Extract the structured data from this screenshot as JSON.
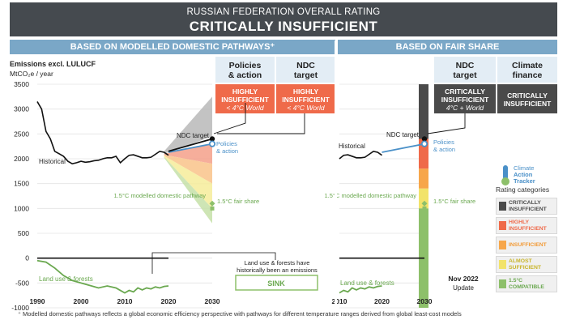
{
  "header": {
    "subtitle": "RUSSIAN FEDERATION OVERALL RATING",
    "title": "CRITICALLY INSUFFICIENT"
  },
  "bands": {
    "left": "BASED ON MODELLED DOMESTIC PATHWAYS⁺",
    "right": "BASED ON FAIR SHARE"
  },
  "columns": {
    "policies": {
      "title_l1": "Policies",
      "title_l2": "& action",
      "rating_l1": "HIGHLY",
      "rating_l2": "INSUFFICIENT",
      "rating_l3": "< 4°C World",
      "color": "#ef6a4a"
    },
    "ndc_left": {
      "title_l1": "NDC",
      "title_l2": "target",
      "rating_l1": "HIGHLY",
      "rating_l2": "INSUFFICIENT",
      "rating_l3": "< 4°C World",
      "color": "#ef6a4a"
    },
    "ndc_right": {
      "title_l1": "NDC",
      "title_l2": "target",
      "rating_l1": "CRITICALLY",
      "rating_l2": "INSUFFICIENT",
      "rating_l3": "4°C + World",
      "color": "#4a4a4a"
    },
    "climate_finance": {
      "title_l1": "Climate",
      "title_l2": "finance",
      "rating_l1": "CRITICALLY",
      "rating_l2": "INSUFFICIENT",
      "color": "#4a4a4a"
    }
  },
  "legend": {
    "logo_l1": "Climate",
    "logo_l2": "Action",
    "logo_l3": "Tracker",
    "title": "Rating categories",
    "items": [
      {
        "l1": "CRITICALLY",
        "l2": "INSUFFICIENT",
        "color": "#4a4a4a",
        "text_color": "#4a4a4a"
      },
      {
        "l1": "HIGHLY",
        "l2": "INSUFFICIENT",
        "color": "#ef6a4a",
        "text_color": "#ef6a4a"
      },
      {
        "l1": "INSUFFICIENT",
        "l2": "",
        "color": "#f7a64a",
        "text_color": "#f29a36"
      },
      {
        "l1": "ALMOST",
        "l2": "SUFFICIENT",
        "color": "#f2e36a",
        "text_color": "#c9b52a"
      },
      {
        "l1": "1.5°C",
        "l2": "COMPATIBLE",
        "color": "#8dc06a",
        "text_color": "#6aa84f"
      }
    ]
  },
  "update": {
    "l1": "Nov 2022",
    "l2": "Update"
  },
  "footnote": "⁺ Modelled domestic pathways reflects a global economic efficiency perspective with pathways for different temperature ranges derived from global least-cost models",
  "chart_data": [
    {
      "type": "line",
      "panel": "modelled-domestic-pathways",
      "ylabel_l1": "Emissions excl. LULUCF",
      "ylabel_l2": "MtCO₂e / year",
      "x_ticks": [
        "1990",
        "2000",
        "2010",
        "2020",
        "2030"
      ],
      "y_ticks": [
        "3500",
        "3000",
        "2500",
        "2000",
        "1500",
        "1000",
        "500",
        "0",
        "-500",
        "-1000"
      ],
      "xlim": [
        1990,
        2030
      ],
      "ylim": [
        -1000,
        3500
      ],
      "series": [
        {
          "name": "Historical",
          "color": "#111111",
          "x": [
            1990,
            1991,
            1992,
            1993,
            1994,
            1995,
            1996,
            1997,
            1998,
            1999,
            2000,
            2001,
            2002,
            2003,
            2004,
            2005,
            2006,
            2007,
            2008,
            2009,
            2010,
            2011,
            2012,
            2013,
            2014,
            2015,
            2016,
            2017,
            2018,
            2019,
            2020
          ],
          "y": [
            3150,
            3000,
            2550,
            2400,
            2150,
            2100,
            2050,
            1950,
            1900,
            1920,
            1950,
            1930,
            1940,
            1960,
            1970,
            2000,
            2020,
            2020,
            2050,
            1920,
            2000,
            2070,
            2080,
            2050,
            2020,
            2020,
            2030,
            2090,
            2150,
            2130,
            2070
          ]
        },
        {
          "name": "Policies & action",
          "color": "#4a90c8",
          "x": [
            2020,
            2030
          ],
          "y": [
            2130,
            2300
          ]
        },
        {
          "name": "NDC target",
          "color": "#111111",
          "x": [
            2020,
            2030
          ],
          "y": [
            2150,
            2400
          ]
        },
        {
          "name": "Land use & forests",
          "color": "#6aa84f",
          "x": [
            1990,
            1992,
            1994,
            1996,
            1998,
            2000,
            2002,
            2004,
            2006,
            2008,
            2009,
            2010,
            2011,
            2012,
            2013,
            2014,
            2015,
            2016,
            2017,
            2018,
            2019,
            2020
          ],
          "y": [
            -50,
            -80,
            -200,
            -350,
            -450,
            -500,
            -550,
            -600,
            -560,
            -600,
            -650,
            -700,
            -650,
            -680,
            -600,
            -640,
            -600,
            -620,
            -580,
            -600,
            -570,
            -560
          ]
        }
      ],
      "zero_line": {
        "x": [
          1990,
          2020
        ],
        "y": 0
      },
      "range_bands": [
        {
          "name": "critically insufficient",
          "color": "#b8b8b8",
          "x": [
            2019,
            2030
          ],
          "top": [
            2150,
            3250
          ],
          "bottom": [
            2100,
            2450
          ]
        },
        {
          "name": "highly insufficient",
          "color": "#f4a08a",
          "x": [
            2019,
            2030
          ],
          "top": [
            2100,
            2300
          ],
          "bottom": [
            2080,
            1900
          ]
        },
        {
          "name": "insufficient",
          "color": "#f9c38a",
          "x": [
            2019,
            2030
          ],
          "top": [
            2080,
            1900
          ],
          "bottom": [
            2060,
            1500
          ]
        },
        {
          "name": "almost sufficient",
          "color": "#f6ec9a",
          "x": [
            2019,
            2030
          ],
          "top": [
            2060,
            1500
          ],
          "bottom": [
            2040,
            1000
          ]
        },
        {
          "name": "1.5°C compatible",
          "color": "#c5e0a8",
          "x": [
            2019,
            2030
          ],
          "top": [
            2040,
            1000
          ],
          "bottom": [
            2020,
            700
          ]
        }
      ],
      "markers": [
        {
          "label": "NDC target",
          "x": 2030,
          "y": 2400,
          "color": "#111111"
        },
        {
          "label_l1": "Policies",
          "label_l2": "& action",
          "x": 2030,
          "y": 2300,
          "color": "#4a90c8"
        },
        {
          "label": "1.5°C modelled domestic pathway",
          "x": 2030,
          "y": 1100,
          "color": "#8dc06a"
        },
        {
          "label": "1.5°C fair share",
          "x": 2030,
          "y": 1000,
          "color": "#8dc06a"
        }
      ],
      "annotations": {
        "historical": "Historical",
        "land_use": "Land use & forests",
        "sink_note_l1": "Land use & forests have",
        "sink_note_l2": "historically been an emissions",
        "sink_note_l3": "sink",
        "sink_box": "SINK"
      }
    },
    {
      "type": "line",
      "panel": "fair-share",
      "x_ticks": [
        "2010",
        "2020",
        "2030"
      ],
      "xlim": [
        2010,
        2030
      ],
      "ylim": [
        -1000,
        3500
      ],
      "series": [
        {
          "name": "Historical",
          "color": "#111111",
          "x": [
            2010,
            2011,
            2012,
            2013,
            2014,
            2015,
            2016,
            2017,
            2018,
            2019,
            2020
          ],
          "y": [
            2000,
            2070,
            2080,
            2050,
            2020,
            2020,
            2030,
            2090,
            2150,
            2130,
            2070
          ]
        },
        {
          "name": "Policies & action",
          "color": "#4a90c8",
          "x": [
            2020,
            2030
          ],
          "y": [
            2130,
            2300
          ]
        },
        {
          "name": "Land use & forests",
          "color": "#6aa84f",
          "x": [
            2010,
            2011,
            2012,
            2013,
            2014,
            2015,
            2016,
            2017,
            2018,
            2019,
            2020
          ],
          "y": [
            -700,
            -650,
            -680,
            -600,
            -640,
            -600,
            -620,
            -580,
            -600,
            -570,
            -560
          ]
        }
      ],
      "zero_line": {
        "x": [
          2010,
          2030
        ],
        "y": 0
      },
      "fair_share_bar": [
        {
          "name": "critically insufficient",
          "color": "#4a4a4a",
          "from": 2400,
          "to": 3500
        },
        {
          "name": "highly insufficient",
          "color": "#ef6a4a",
          "from": 1800,
          "to": 2400
        },
        {
          "name": "insufficient",
          "color": "#f7a64a",
          "from": 1400,
          "to": 1800
        },
        {
          "name": "almost sufficient",
          "color": "#f2e36a",
          "from": 1000,
          "to": 1400
        },
        {
          "name": "1.5°C compatible",
          "color": "#8dc06a",
          "from": -1000,
          "to": 1000
        }
      ],
      "markers": [
        {
          "label": "NDC target",
          "x": 2030,
          "y": 2400,
          "color": "#111111"
        },
        {
          "label_l1": "Policies",
          "label_l2": "& action",
          "x": 2030,
          "y": 2300,
          "color": "#4a90c8"
        },
        {
          "label": "1.5°C modelled domestic pathway",
          "x": 2030,
          "y": 1100,
          "color": "#8dc06a"
        },
        {
          "label": "1.5°C fair share",
          "x": 2030,
          "y": 1000,
          "color": "#8dc06a"
        }
      ],
      "annotations": {
        "historical": "Historical",
        "land_use": "Land use & forests"
      }
    }
  ]
}
